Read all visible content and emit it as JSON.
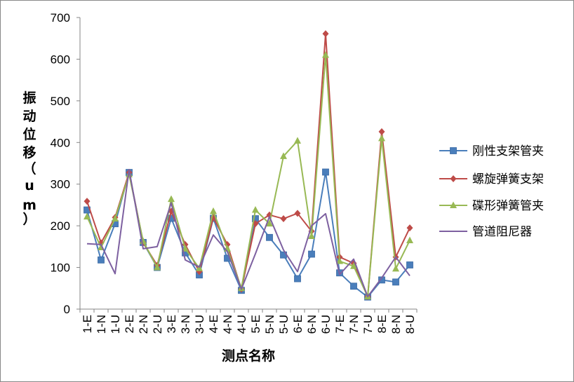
{
  "chart_data": {
    "type": "line",
    "xlabel": "测点名称",
    "ylabel_chars": [
      "振",
      "动",
      "位",
      "移",
      "（",
      "u",
      "m",
      "）"
    ],
    "ylim": [
      0,
      700
    ],
    "yticks": [
      0,
      100,
      200,
      300,
      400,
      500,
      600,
      700
    ],
    "grid": false,
    "legend_position": "right",
    "categories": [
      "1-E",
      "1-N",
      "1-U",
      "2-E",
      "2-N",
      "2-U",
      "3-E",
      "3-N",
      "3-U",
      "4-E",
      "4-N",
      "4-U",
      "5-E",
      "5-N",
      "5-U",
      "6-E",
      "6-N",
      "6-U",
      "7-E",
      "7-N",
      "7-U",
      "8-E",
      "8-N",
      "8-U"
    ],
    "series": [
      {
        "name": "刚性支架管夹",
        "color": "#4a7ebb",
        "marker": "square",
        "values": [
          238,
          118,
          205,
          328,
          160,
          100,
          218,
          135,
          82,
          218,
          122,
          45,
          217,
          172,
          130,
          73,
          132,
          329,
          87,
          55,
          29,
          70,
          65,
          106
        ]
      },
      {
        "name": "螺旋弹簧支架",
        "color": "#be4b48",
        "marker": "diamond",
        "values": [
          259,
          159,
          220,
          328,
          160,
          105,
          235,
          155,
          90,
          220,
          155,
          48,
          205,
          226,
          217,
          230,
          187,
          661,
          125,
          110,
          30,
          426,
          125,
          195
        ]
      },
      {
        "name": "碟形弹簧管夹",
        "color": "#98b954",
        "marker": "triangle",
        "values": [
          222,
          148,
          217,
          323,
          163,
          100,
          264,
          145,
          98,
          235,
          145,
          50,
          238,
          205,
          367,
          404,
          175,
          610,
          115,
          103,
          30,
          410,
          97,
          165
        ]
      },
      {
        "name": "管道阻尼器",
        "color": "#7d60a0",
        "marker": "none",
        "values": [
          157,
          155,
          85,
          335,
          145,
          150,
          255,
          118,
          101,
          178,
          138,
          48,
          133,
          222,
          142,
          90,
          200,
          229,
          83,
          120,
          30,
          75,
          125,
          80
        ]
      }
    ]
  }
}
